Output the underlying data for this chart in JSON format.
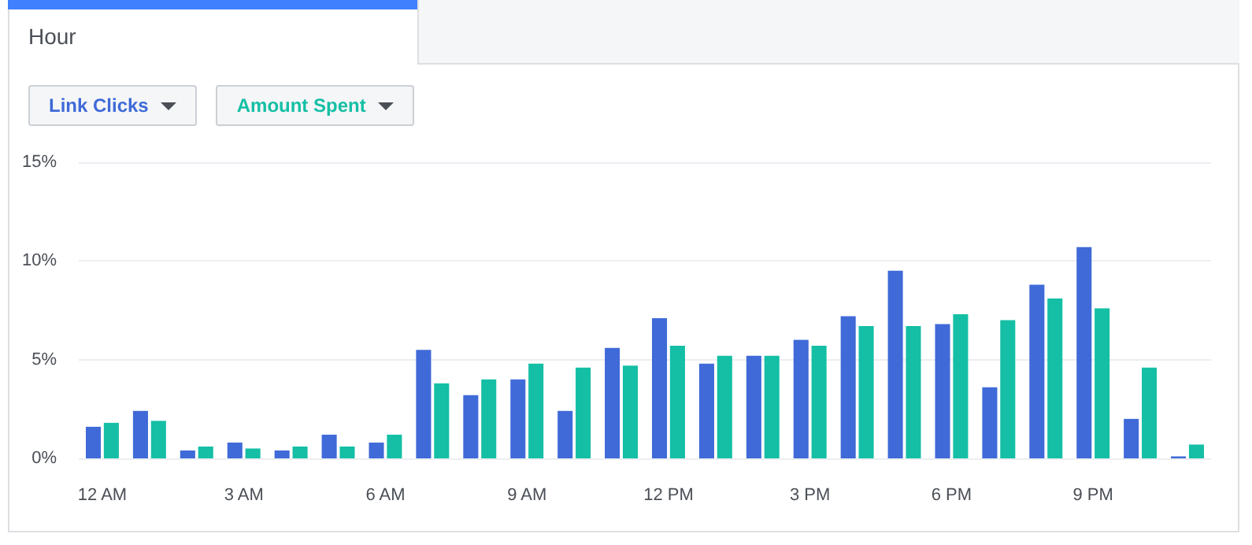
{
  "chart_data": {
    "type": "bar",
    "title": "Hour",
    "categories": [
      "12 AM",
      null,
      null,
      "3 AM",
      null,
      null,
      "6 AM",
      null,
      null,
      "9 AM",
      null,
      null,
      "12 PM",
      null,
      null,
      "3 PM",
      null,
      null,
      "6 PM",
      null,
      null,
      "9 PM",
      null,
      null
    ],
    "series": [
      {
        "name": "Link Clicks",
        "color": "#3f6ad8",
        "values": [
          1.6,
          2.4,
          0.4,
          0.8,
          0.4,
          1.2,
          0.8,
          5.5,
          3.2,
          4.0,
          2.4,
          5.6,
          7.1,
          4.8,
          5.2,
          6.0,
          7.2,
          9.5,
          6.8,
          3.6,
          8.8,
          10.7,
          2.0,
          0.1
        ]
      },
      {
        "name": "Amount Spent",
        "color": "#14bfa5",
        "values": [
          1.8,
          1.9,
          0.6,
          0.5,
          0.6,
          0.6,
          1.2,
          3.8,
          4.0,
          4.8,
          4.6,
          4.7,
          5.7,
          5.2,
          5.2,
          5.7,
          6.7,
          6.7,
          7.3,
          7.0,
          8.1,
          7.6,
          4.6,
          0.7
        ]
      }
    ],
    "ylim": [
      0,
      15
    ],
    "yticks": [
      {
        "value": 0,
        "label": "0%"
      },
      {
        "value": 5,
        "label": "5%"
      },
      {
        "value": 10,
        "label": "10%"
      },
      {
        "value": 15,
        "label": "15%"
      }
    ],
    "grid": "y",
    "legend": "top left"
  }
}
